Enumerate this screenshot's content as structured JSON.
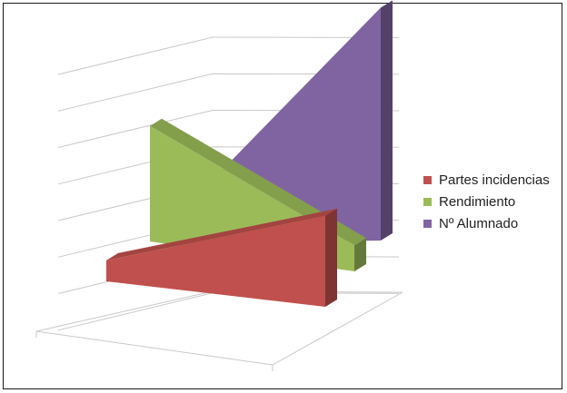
{
  "chart_data": {
    "type": "area",
    "style": "3d-area",
    "title": "",
    "xlabel": "",
    "ylabel": "",
    "categories": [
      "",
      ""
    ],
    "series": [
      {
        "name": "Partes incidencias",
        "values": [
          0.6,
          2.6
        ],
        "color": "#C0504D"
      },
      {
        "name": "Rendimiento",
        "values": [
          5.3,
          1.2
        ],
        "color": "#9BBB59"
      },
      {
        "name": "Nº Alumnado",
        "values": [
          1.8,
          7.5
        ],
        "color": "#8064A2"
      }
    ],
    "ylim": [
      0,
      8
    ],
    "grid": true,
    "legend_position": "right"
  }
}
